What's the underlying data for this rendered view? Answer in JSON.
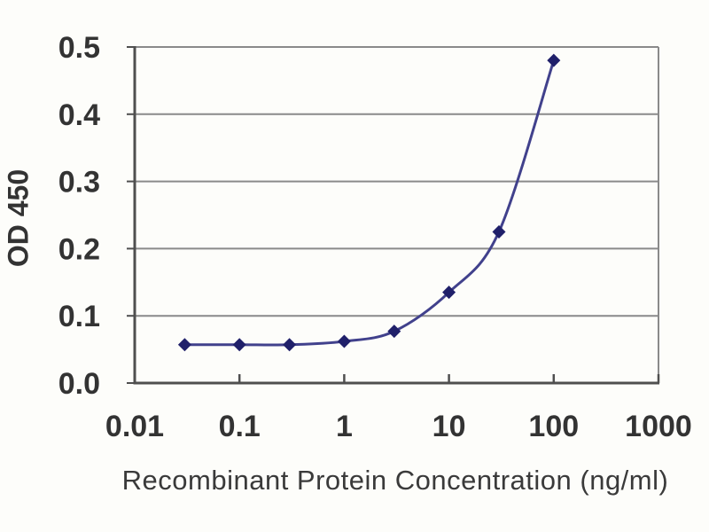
{
  "chart_data": {
    "type": "line",
    "title": "",
    "xlabel": "Recombinant Protein Concentration (ng/ml)",
    "ylabel": "OD 450",
    "x_scale": "log",
    "xlim": [
      0.01,
      1000
    ],
    "ylim": [
      0.0,
      0.5
    ],
    "x": [
      0.03,
      0.1,
      0.3,
      1,
      3,
      10,
      30,
      100
    ],
    "series": [
      {
        "name": "OD 450",
        "values": [
          0.057,
          0.057,
          0.057,
          0.062,
          0.077,
          0.135,
          0.225,
          0.48
        ]
      }
    ],
    "x_ticks": [
      0.01,
      0.1,
      1,
      10,
      100,
      1000
    ],
    "x_tick_labels": [
      "0.01",
      "0.1",
      "1",
      "10",
      "100",
      "1000"
    ],
    "y_ticks": [
      0.0,
      0.1,
      0.2,
      0.3,
      0.4,
      0.5
    ],
    "y_tick_labels": [
      "0.0",
      "0.1",
      "0.2",
      "0.3",
      "0.4",
      "0.5"
    ],
    "grid": "horizontal",
    "legend": false,
    "marker": "diamond",
    "line_smooth": true,
    "colors": {
      "line": "#41418c",
      "marker": "#20206a",
      "grid": "#8a8a8a",
      "axis": "#4f4f4f",
      "text": "#333333",
      "background": "#fdfdfa"
    }
  }
}
